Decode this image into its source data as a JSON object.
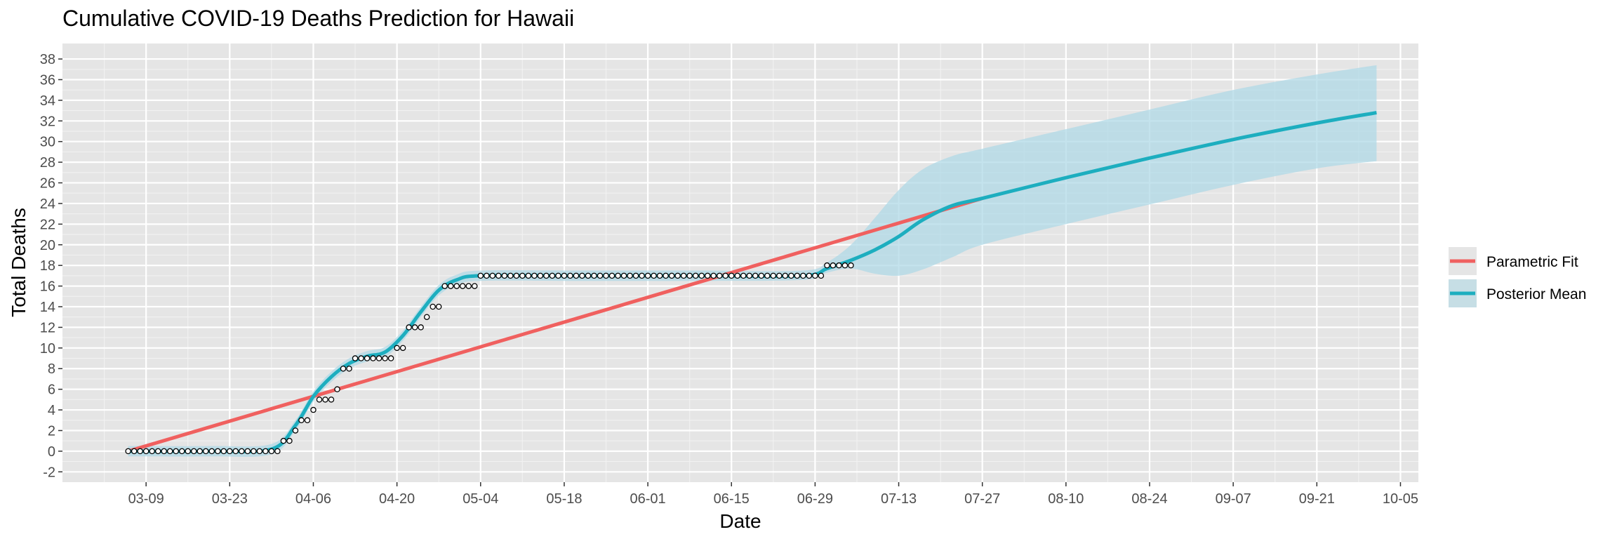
{
  "chart_data": {
    "type": "line",
    "title": "Cumulative COVID-19 Deaths Prediction for Hawaii",
    "xlabel": "Date",
    "ylabel": "Total Deaths",
    "x_axis": {
      "start": "2020-02-24",
      "end": "2020-10-08",
      "tick_dates": [
        "2020-03-09",
        "2020-03-23",
        "2020-04-06",
        "2020-04-20",
        "2020-05-04",
        "2020-05-18",
        "2020-06-01",
        "2020-06-15",
        "2020-06-29",
        "2020-07-13",
        "2020-07-27",
        "2020-08-10",
        "2020-08-24",
        "2020-09-07",
        "2020-09-21",
        "2020-10-05"
      ],
      "tick_labels": [
        "03-09",
        "03-23",
        "04-06",
        "04-20",
        "05-04",
        "05-18",
        "06-01",
        "06-15",
        "06-29",
        "07-13",
        "07-27",
        "08-10",
        "08-24",
        "09-07",
        "09-21",
        "10-05"
      ]
    },
    "y_axis": {
      "ylim": [
        -3,
        39.5
      ],
      "ticks": [
        -2,
        0,
        2,
        4,
        6,
        8,
        10,
        12,
        14,
        16,
        18,
        20,
        22,
        24,
        26,
        28,
        30,
        32,
        34,
        36,
        38
      ],
      "tick_labels": [
        "-2",
        "0",
        "2",
        "4",
        "6",
        "8",
        "10",
        "12",
        "14",
        "16",
        "18",
        "20",
        "22",
        "24",
        "26",
        "28",
        "30",
        "32",
        "34",
        "36",
        "38"
      ]
    },
    "grid": true,
    "panel_background": "#e5e5e5",
    "legend_position": "right",
    "series": [
      {
        "name": "Parametric Fit",
        "color": "#f0605f",
        "x": [
          "2020-03-06",
          "2020-07-27"
        ],
        "y": [
          0,
          24.5
        ]
      },
      {
        "name": "Posterior Mean",
        "color": "#1daebf",
        "band_color": "#add8e6",
        "x": [
          "2020-03-06",
          "2020-03-20",
          "2020-03-30",
          "2020-04-03",
          "2020-04-06",
          "2020-04-09",
          "2020-04-12",
          "2020-04-15",
          "2020-04-18",
          "2020-04-21",
          "2020-04-24",
          "2020-04-27",
          "2020-04-30",
          "2020-05-04",
          "2020-05-20",
          "2020-06-10",
          "2020-06-27",
          "2020-07-01",
          "2020-07-05",
          "2020-07-09",
          "2020-07-13",
          "2020-07-17",
          "2020-07-22",
          "2020-07-27",
          "2020-08-10",
          "2020-08-24",
          "2020-09-07",
          "2020-09-21",
          "2020-10-01"
        ],
        "y": [
          0,
          0,
          0.2,
          2.5,
          5.3,
          7.2,
          8.5,
          9.2,
          9.6,
          11.2,
          13.5,
          15.6,
          16.6,
          17,
          17,
          17,
          17,
          17.7,
          18.5,
          19.5,
          20.8,
          22.4,
          23.8,
          24.5,
          26.5,
          28.4,
          30.2,
          31.8,
          32.8
        ],
        "lower": [
          -0.5,
          -0.5,
          -0.3,
          2.0,
          4.8,
          6.7,
          8.0,
          8.7,
          9.1,
          10.7,
          13.0,
          15.1,
          16.1,
          16.5,
          16.5,
          16.5,
          16.6,
          17.3,
          17.7,
          17.2,
          17.0,
          17.6,
          18.8,
          20.0,
          22.0,
          23.9,
          25.8,
          27.4,
          28.1
        ],
        "upper": [
          0.5,
          0.5,
          0.7,
          3.0,
          5.8,
          7.7,
          9.0,
          9.7,
          10.1,
          11.7,
          14.0,
          16.1,
          17.1,
          17.5,
          17.5,
          17.5,
          17.5,
          18.3,
          20.0,
          22.6,
          25.3,
          27.3,
          28.6,
          29.3,
          31.2,
          33.1,
          35.0,
          36.5,
          37.4
        ]
      }
    ],
    "observed_points": {
      "start": "2020-03-06",
      "values": [
        0,
        0,
        0,
        0,
        0,
        0,
        0,
        0,
        0,
        0,
        0,
        0,
        0,
        0,
        0,
        0,
        0,
        0,
        0,
        0,
        0,
        0,
        0,
        0,
        0,
        0,
        1,
        1,
        2,
        3,
        3,
        4,
        5,
        5,
        5,
        6,
        8,
        8,
        9,
        9,
        9,
        9,
        9,
        9,
        9,
        10,
        10,
        12,
        12,
        12,
        13,
        14,
        14,
        16,
        16,
        16,
        16,
        16,
        16,
        17,
        17,
        17,
        17,
        17,
        17,
        17,
        17,
        17,
        17,
        17,
        17,
        17,
        17,
        17,
        17,
        17,
        17,
        17,
        17,
        17,
        17,
        17,
        17,
        17,
        17,
        17,
        17,
        17,
        17,
        17,
        17,
        17,
        17,
        17,
        17,
        17,
        17,
        17,
        17,
        17,
        17,
        17,
        17,
        17,
        17,
        17,
        17,
        17,
        17,
        17,
        17,
        17,
        17,
        17,
        17,
        17,
        17,
        18,
        18,
        18,
        18,
        18
      ]
    }
  }
}
